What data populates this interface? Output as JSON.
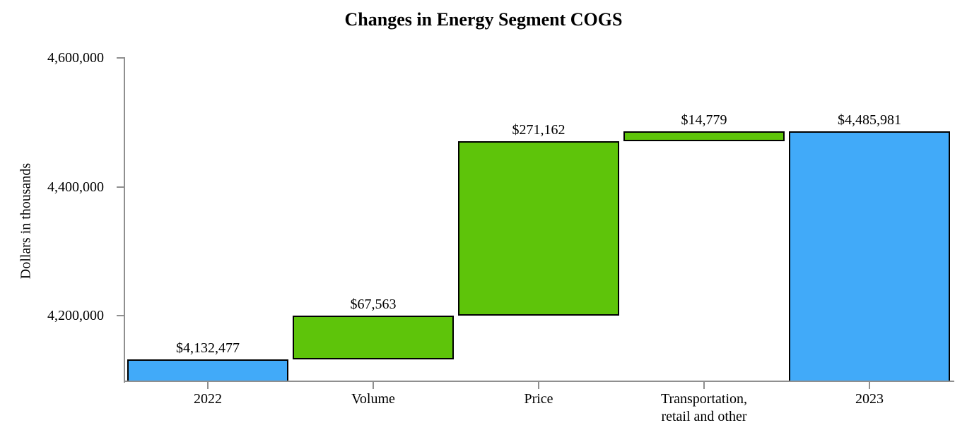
{
  "chart_data": {
    "type": "waterfall",
    "title": "Changes in Energy Segment COGS",
    "ylabel": "Dollars in thousands",
    "ylim": [
      4100000,
      4600000
    ],
    "yticks": [
      {
        "value": 4200000,
        "label": "4,200,000"
      },
      {
        "value": 4400000,
        "label": "4,400,000"
      },
      {
        "value": 4600000,
        "label": "4,600,000"
      }
    ],
    "grid": false,
    "legend_position": "none",
    "colors": {
      "total": "#41AAF9",
      "change": "#5EC40A",
      "bar_border": "#000000",
      "axis": "#8F8F8F",
      "text": "#000000"
    },
    "bars": [
      {
        "category_lines": [
          "2022"
        ],
        "role": "total",
        "start": 4100000,
        "end": 4132477,
        "value": 4132477,
        "value_label": "$4,132,477"
      },
      {
        "category_lines": [
          "Volume"
        ],
        "role": "change",
        "start": 4132477,
        "end": 4200040,
        "value": 67563,
        "value_label": "$67,563"
      },
      {
        "category_lines": [
          "Price"
        ],
        "role": "change",
        "start": 4200040,
        "end": 4471202,
        "value": 271162,
        "value_label": "$271,162"
      },
      {
        "category_lines": [
          "Transportation,",
          "retail and other"
        ],
        "role": "change",
        "start": 4471202,
        "end": 4485981,
        "value": 14779,
        "value_label": "$14,779"
      },
      {
        "category_lines": [
          "2023"
        ],
        "role": "total",
        "start": 4100000,
        "end": 4485981,
        "value": 4485981,
        "value_label": "$4,485,981"
      }
    ]
  }
}
